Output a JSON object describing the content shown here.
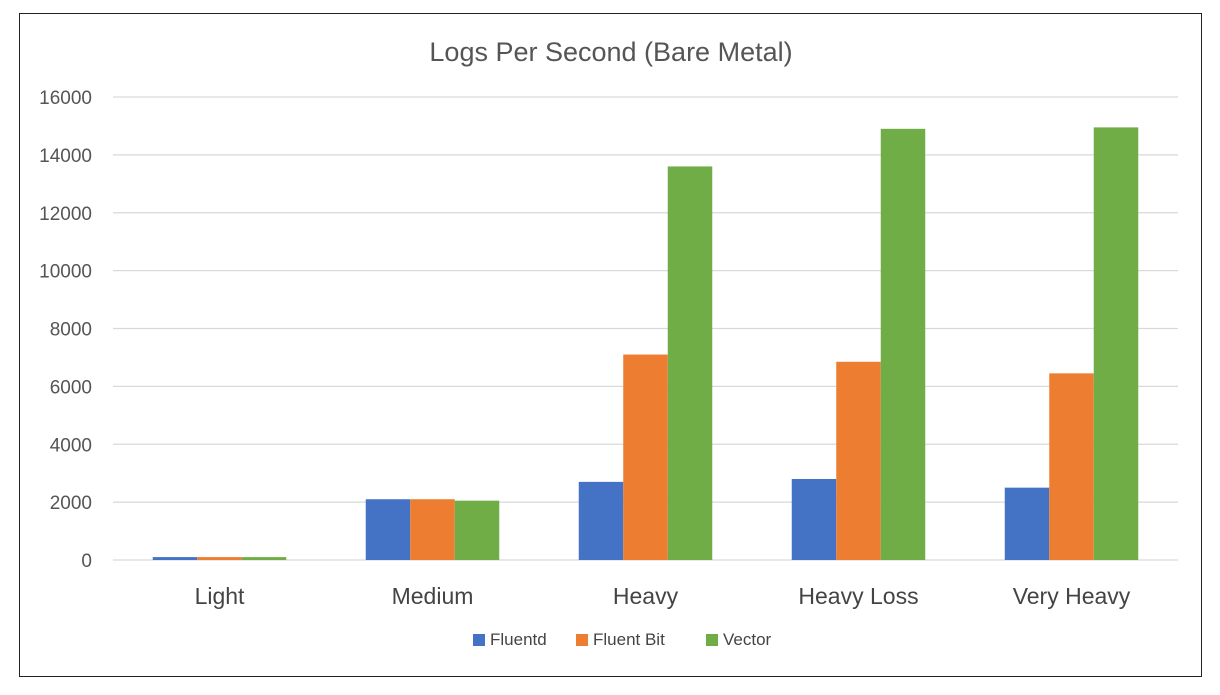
{
  "chart_data": {
    "type": "bar",
    "title": "Logs Per Second (Bare Metal)",
    "xlabel": "",
    "ylabel": "",
    "categories": [
      "Light",
      "Medium",
      "Heavy",
      "Heavy Loss",
      "Very Heavy"
    ],
    "series": [
      {
        "name": "Fluentd",
        "color": "#4472c4",
        "values": [
          100,
          2100,
          2700,
          2800,
          2500
        ]
      },
      {
        "name": "Fluent Bit",
        "color": "#ed7d31",
        "values": [
          100,
          2100,
          7100,
          6850,
          6450
        ]
      },
      {
        "name": "Vector",
        "color": "#70ad47",
        "values": [
          100,
          2050,
          13600,
          14900,
          14950
        ]
      }
    ],
    "ylim": [
      0,
      16000
    ],
    "yticks": [
      0,
      2000,
      4000,
      6000,
      8000,
      10000,
      12000,
      14000,
      16000
    ],
    "grid": true,
    "gridColor": "#d9d9d9",
    "legend_position": "bottom"
  }
}
